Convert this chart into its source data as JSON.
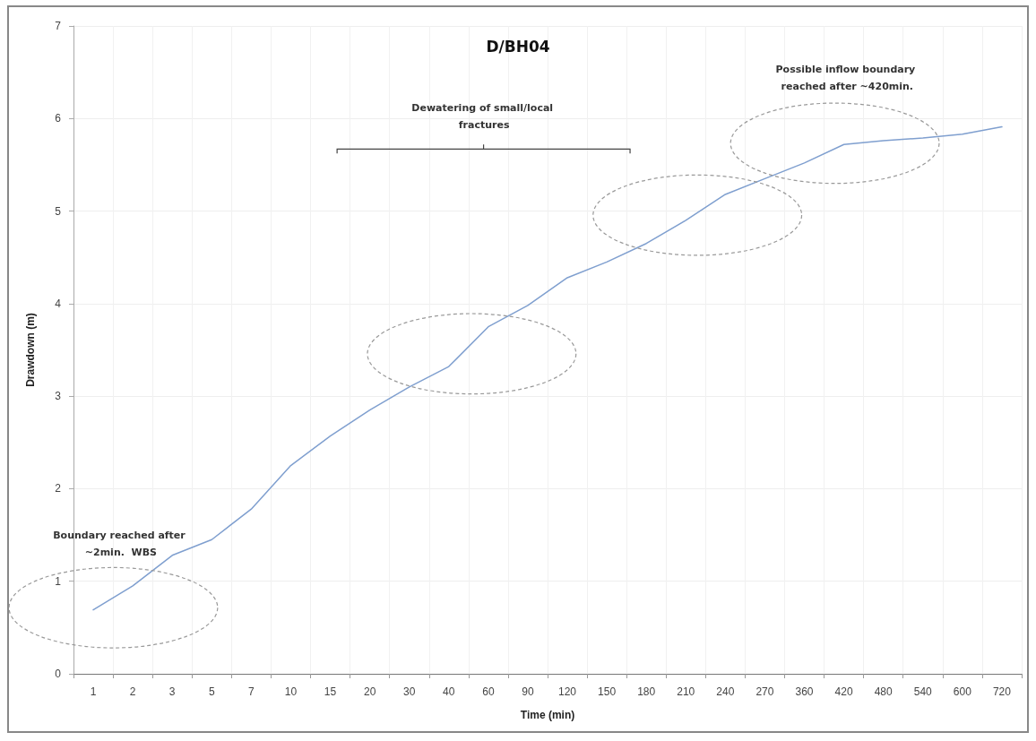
{
  "chart_data": {
    "type": "line",
    "title": "D/BH04",
    "xlabel": "Time (min)",
    "ylabel": "Drawdown (m)",
    "categories": [
      "1",
      "2",
      "3",
      "5",
      "7",
      "10",
      "15",
      "20",
      "30",
      "40",
      "60",
      "90",
      "120",
      "150",
      "180",
      "210",
      "240",
      "270",
      "360",
      "420",
      "480",
      "540",
      "600",
      "720"
    ],
    "series": [
      {
        "color": "#7f9fcf",
        "values": [
          0.69,
          0.95,
          1.28,
          1.45,
          1.78,
          2.25,
          2.57,
          2.85,
          3.1,
          3.32,
          3.75,
          3.98,
          4.28,
          4.45,
          4.65,
          4.9,
          5.18,
          5.35,
          5.52,
          5.72,
          5.76,
          5.79,
          5.83,
          5.91
        ]
      }
    ],
    "ylim": [
      0,
      7
    ],
    "yticks": [
      0,
      1,
      2,
      3,
      4,
      5,
      6,
      7
    ],
    "grid": true,
    "marker": "none",
    "line_style": "solid",
    "annotations": [
      "Boundary reached after ~2min.  WBS",
      "Dewatering of small/local fractures",
      "Possible inflow boundary reached after ~420min."
    ]
  }
}
